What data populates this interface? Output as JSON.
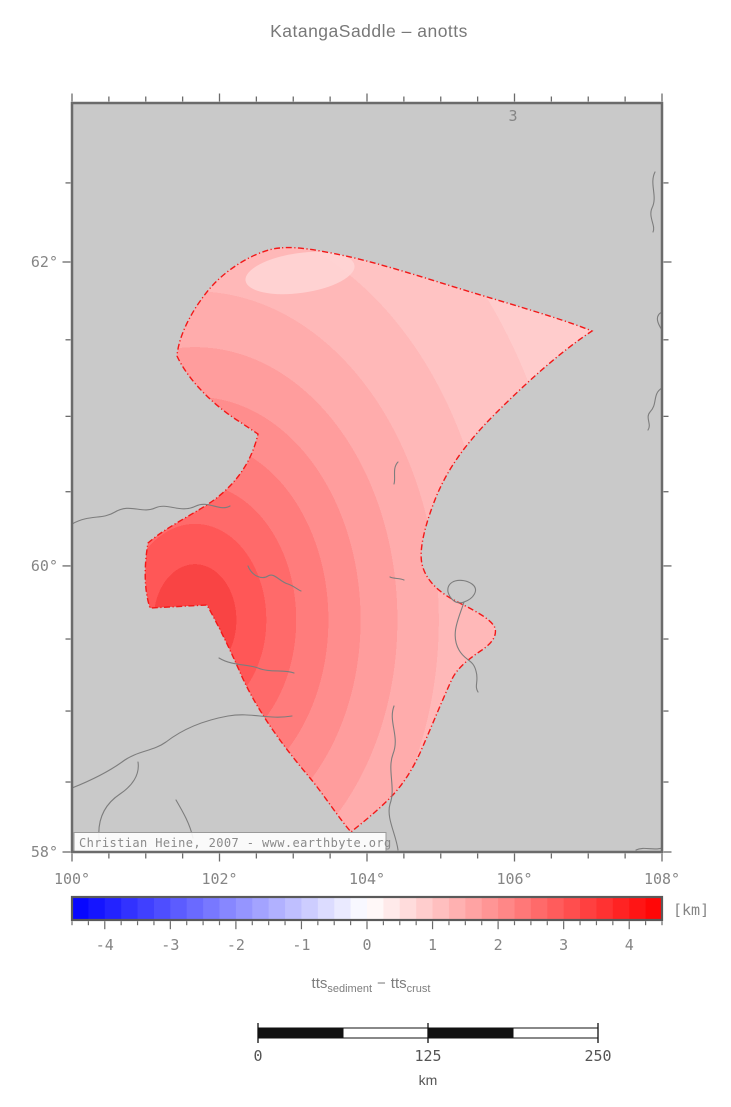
{
  "title": "KatangaSaddle – anotts",
  "map": {
    "contour_label": "3",
    "attribution": "Christian Heine, 2007 - www.earthbyte.org",
    "lon_tick_labels": [
      "100°",
      "102°",
      "104°",
      "106°",
      "108°"
    ],
    "lat_tick_labels": [
      "62°",
      "60°",
      "58°"
    ],
    "background_color": "#c9c9c9",
    "frame_color": "#6b6b6b",
    "river_color": "#7d7d7d",
    "region_outline_color": "#f21818",
    "region_band_colors": [
      [
        0.09,
        "#f94444"
      ],
      [
        0.155,
        "#ff5757"
      ],
      [
        0.22,
        "#ff6a6a"
      ],
      [
        0.29,
        "#ff7c7c"
      ],
      [
        0.36,
        "#ff8d8d"
      ],
      [
        0.44,
        "#ff9d9d"
      ],
      [
        0.53,
        "#ffacac"
      ],
      [
        0.65,
        "#ffb8b8"
      ],
      [
        0.82,
        "#ffc3c3"
      ],
      [
        1.0,
        "#ffcccc"
      ]
    ],
    "light_patch_color": "#ffd6d6"
  },
  "colorbar": {
    "min": -4.5,
    "max": 4.5,
    "step": 0.25,
    "tick_labels": [
      "-4",
      "-3",
      "-2",
      "-1",
      "0",
      "1",
      "2",
      "3",
      "4"
    ],
    "unit": "[km]",
    "negative_color": "#0000ff",
    "zero_color": "#ffffff",
    "positive_color": "#ff0000"
  },
  "legend": {
    "term1_main": "tts",
    "term1_sub": "sediment",
    "separator": "−",
    "term2_main": "tts",
    "term2_sub": "crust"
  },
  "scalebar": {
    "tick_labels": [
      "0",
      "125",
      "250"
    ],
    "unit": "km",
    "length_km": 250
  },
  "text_color": "#858585"
}
